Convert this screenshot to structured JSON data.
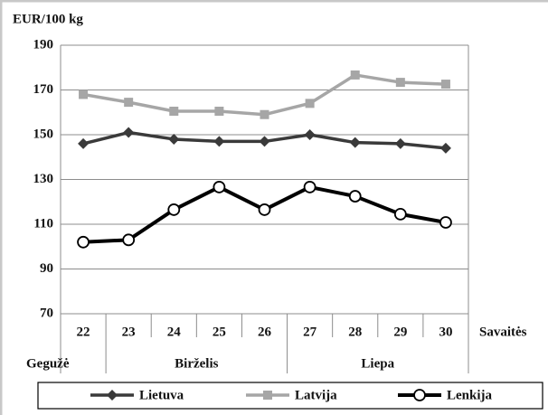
{
  "chart_data": {
    "type": "line",
    "ylabel": "EUR/100 kg",
    "xlabel": "Savaitės",
    "categories": [
      "22",
      "23",
      "24",
      "25",
      "26",
      "27",
      "28",
      "29",
      "30"
    ],
    "groups": [
      {
        "label": "Gegužė",
        "span": 1
      },
      {
        "label": "Birželis",
        "span": 4
      },
      {
        "label": "Liepa",
        "span": 4
      }
    ],
    "series": [
      {
        "name": "Lietuva",
        "color": "#3a3a3a",
        "marker": "diamond",
        "values": [
          146,
          151,
          148,
          147,
          147,
          150,
          146.5,
          146,
          144
        ]
      },
      {
        "name": "Latvija",
        "color": "#a6a6a6",
        "marker": "square",
        "values": [
          168,
          164.5,
          160.5,
          160.5,
          159,
          164,
          176.7,
          173.4,
          172.6
        ]
      },
      {
        "name": "Lenkija",
        "color": "#000000",
        "marker": "circle",
        "values": [
          102,
          103,
          116.5,
          126.6,
          116.5,
          126.6,
          122.5,
          114.5,
          110.8
        ]
      }
    ],
    "ylim": [
      70,
      190
    ],
    "yticks": [
      70,
      90,
      110,
      130,
      150,
      170,
      190
    ],
    "grid": true,
    "legend": "bottom"
  }
}
